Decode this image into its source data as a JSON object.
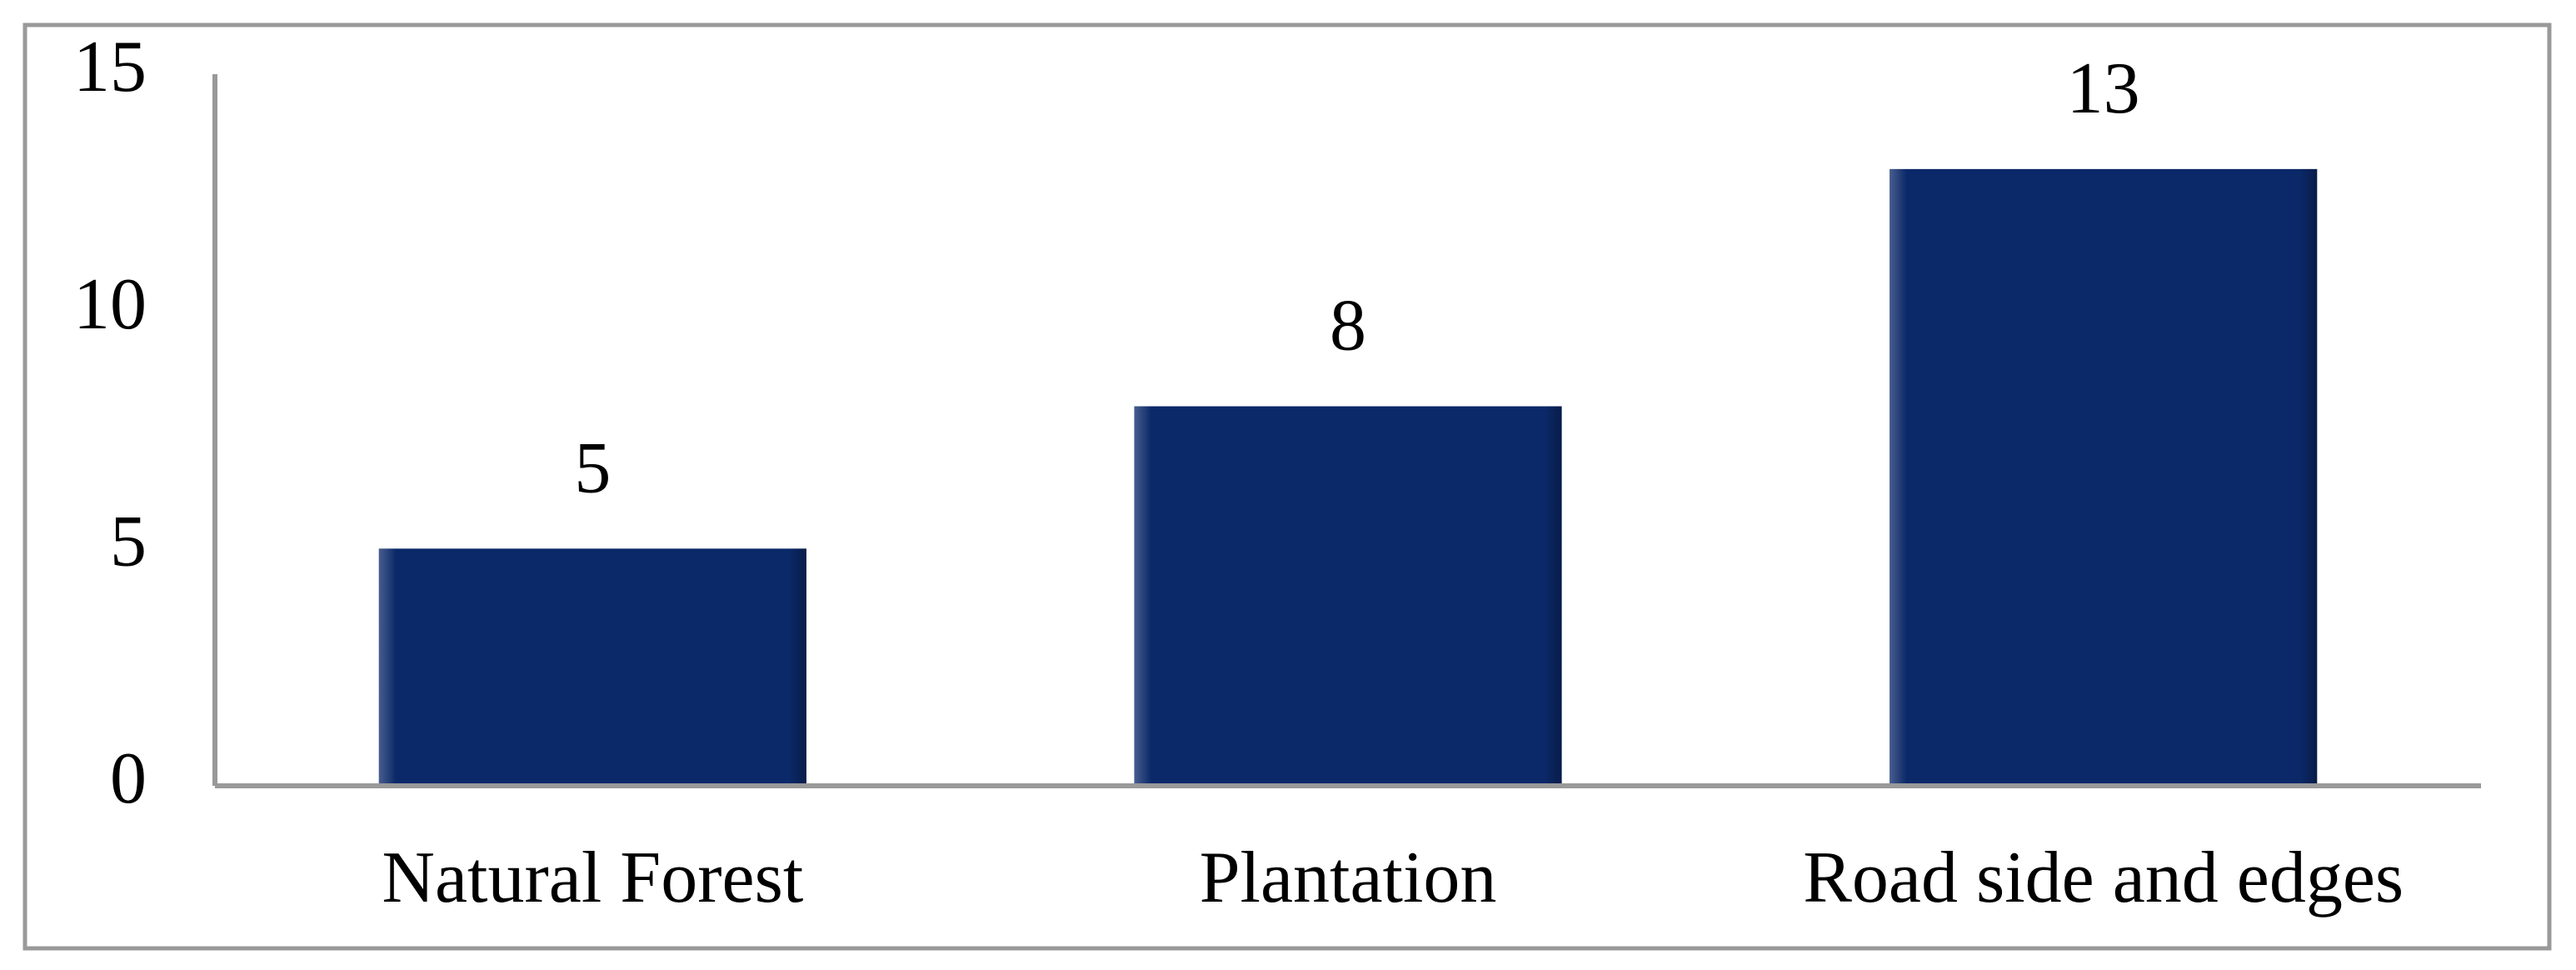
{
  "chart_data": {
    "type": "bar",
    "categories": [
      "Natural Forest",
      "Plantation",
      "Road side and edges"
    ],
    "values": [
      5,
      8,
      13
    ],
    "color": "#0b2868",
    "ylim": [
      0,
      15
    ],
    "yticks": [
      0,
      5,
      10,
      15
    ],
    "grid": false
  }
}
